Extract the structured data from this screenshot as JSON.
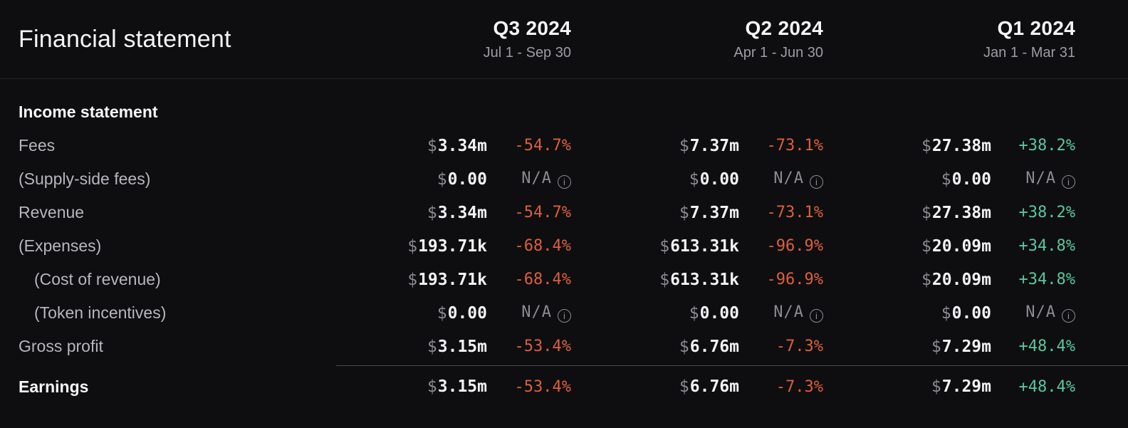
{
  "header": {
    "title": "Financial statement",
    "quarters": [
      {
        "label": "Q3 2024",
        "range": "Jul 1 - Sep 30"
      },
      {
        "label": "Q2 2024",
        "range": "Apr 1 - Jun 30"
      },
      {
        "label": "Q1 2024",
        "range": "Jan 1 - Mar 31"
      }
    ]
  },
  "table": {
    "section_title": "Income statement",
    "currency_symbol": "$",
    "na_label": "N/A",
    "rows": [
      {
        "label": "Fees",
        "indent": 0,
        "bold": false,
        "separator_before": false,
        "cells": [
          {
            "amount": "3.34m",
            "change": "-54.7%"
          },
          {
            "amount": "7.37m",
            "change": "-73.1%"
          },
          {
            "amount": "27.38m",
            "change": "+38.2%"
          }
        ]
      },
      {
        "label": "(Supply-side fees)",
        "indent": 0,
        "bold": false,
        "separator_before": false,
        "cells": [
          {
            "amount": "0.00",
            "change": "N/A"
          },
          {
            "amount": "0.00",
            "change": "N/A"
          },
          {
            "amount": "0.00",
            "change": "N/A"
          }
        ]
      },
      {
        "label": "Revenue",
        "indent": 0,
        "bold": false,
        "separator_before": false,
        "cells": [
          {
            "amount": "3.34m",
            "change": "-54.7%"
          },
          {
            "amount": "7.37m",
            "change": "-73.1%"
          },
          {
            "amount": "27.38m",
            "change": "+38.2%"
          }
        ]
      },
      {
        "label": "(Expenses)",
        "indent": 0,
        "bold": false,
        "separator_before": false,
        "cells": [
          {
            "amount": "193.71k",
            "change": "-68.4%"
          },
          {
            "amount": "613.31k",
            "change": "-96.9%"
          },
          {
            "amount": "20.09m",
            "change": "+34.8%"
          }
        ]
      },
      {
        "label": "(Cost of revenue)",
        "indent": 1,
        "bold": false,
        "separator_before": false,
        "cells": [
          {
            "amount": "193.71k",
            "change": "-68.4%"
          },
          {
            "amount": "613.31k",
            "change": "-96.9%"
          },
          {
            "amount": "20.09m",
            "change": "+34.8%"
          }
        ]
      },
      {
        "label": "(Token incentives)",
        "indent": 1,
        "bold": false,
        "separator_before": false,
        "cells": [
          {
            "amount": "0.00",
            "change": "N/A"
          },
          {
            "amount": "0.00",
            "change": "N/A"
          },
          {
            "amount": "0.00",
            "change": "N/A"
          }
        ]
      },
      {
        "label": "Gross profit",
        "indent": 0,
        "bold": false,
        "separator_before": false,
        "cells": [
          {
            "amount": "3.15m",
            "change": "-53.4%"
          },
          {
            "amount": "6.76m",
            "change": "-7.3%"
          },
          {
            "amount": "7.29m",
            "change": "+48.4%"
          }
        ]
      },
      {
        "label": "Earnings",
        "indent": 0,
        "bold": true,
        "separator_before": true,
        "cells": [
          {
            "amount": "3.15m",
            "change": "-53.4%"
          },
          {
            "amount": "6.76m",
            "change": "-7.3%"
          },
          {
            "amount": "7.29m",
            "change": "+48.4%"
          }
        ]
      }
    ]
  },
  "colors": {
    "bg": "#0e0e10",
    "header-divider": "#232327",
    "earnings-divider": "#4a4a4f",
    "title": "#f5f5f6",
    "quarter-range": "#9d9da4",
    "row-label": "#b6b6bd",
    "bold-label": "#f7f7f8",
    "amount": "#f2f2f4",
    "currency": "#8c8c93",
    "na": "#8b8b92",
    "negative": "#dd5f3b",
    "positive": "#58c89c"
  }
}
